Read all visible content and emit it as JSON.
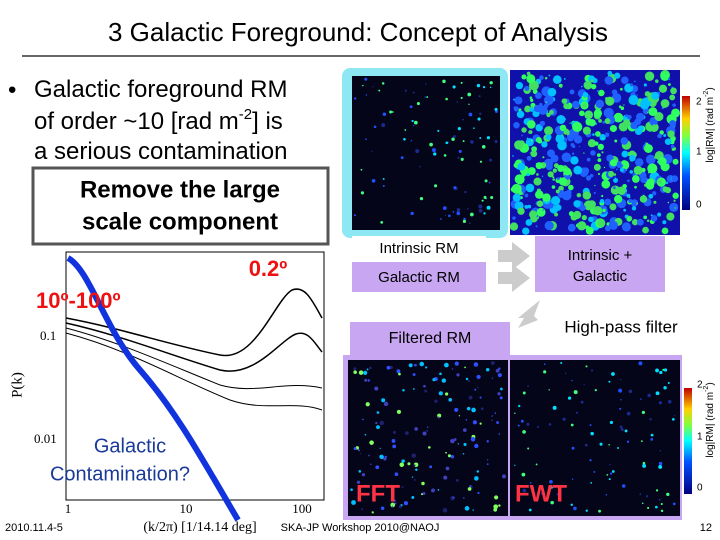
{
  "header": {
    "title": "3 Galactic Foreground: Concept of Analysis"
  },
  "bullet": {
    "parts": [
      "Galactic foreground RM",
      "of order ~10 [rad m",
      "-2",
      "] is",
      "a serious contamination"
    ]
  },
  "callout": {
    "lines": [
      "Remove the large",
      "scale component"
    ]
  },
  "plot": {
    "angle_small": "0.2º",
    "angle_large": "10º-100º",
    "contamination": [
      "Galactic",
      "Contamination?"
    ],
    "yticks": [
      "0.1",
      "0.01"
    ],
    "xticks": [
      "1",
      "10",
      "100"
    ],
    "ylabel": "P(k)",
    "xlabel": "(k/2π) [1/14.14 deg]"
  },
  "boxes": {
    "intrinsic": "Intrinsic RM",
    "galactic": "Galactic RM",
    "combined": [
      "Intrinsic +",
      "Galactic"
    ],
    "filtered": "Filtered RM",
    "filter": "High-pass filter",
    "fft": "FFT",
    "fwt": "FWT"
  },
  "colorbar": {
    "ticks": [
      "2",
      "1",
      "0"
    ],
    "label": [
      "log|RM| (rad m",
      "-2",
      ")"
    ]
  },
  "footer": {
    "date": "2010.11.4-5",
    "event": "SKA-JP Workshop 2010@NAOJ",
    "page": "12"
  }
}
